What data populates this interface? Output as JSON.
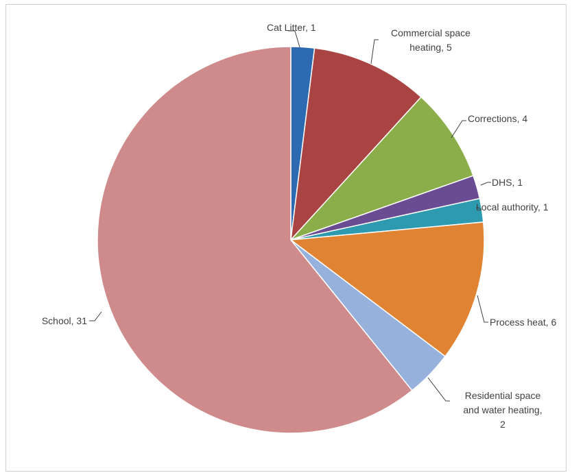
{
  "chart_data": {
    "type": "pie",
    "title": "",
    "slices": [
      {
        "label": "Cat Litter",
        "value": 1,
        "color": "#2E6AB2",
        "text_lines": [
          "Cat Litter, 1"
        ]
      },
      {
        "label": "Commercial space heating",
        "value": 5,
        "color": "#A94442",
        "text_lines": [
          "Commercial space",
          "heating, 5"
        ]
      },
      {
        "label": "Corrections",
        "value": 4,
        "color": "#8CAE4A",
        "text_lines": [
          "Corrections, 4"
        ]
      },
      {
        "label": "DHS",
        "value": 1,
        "color": "#6A4C93",
        "text_lines": [
          "DHS, 1"
        ]
      },
      {
        "label": "Local authority",
        "value": 1,
        "color": "#2E9AB0",
        "text_lines": [
          "Local authority, 1"
        ]
      },
      {
        "label": "Process heat",
        "value": 6,
        "color": "#E08434",
        "text_lines": [
          "Process heat, 6"
        ]
      },
      {
        "label": "Residential space and water heating",
        "value": 2,
        "color": "#95B1DC",
        "text_lines": [
          "Residential space",
          "and water heating,",
          "2"
        ]
      },
      {
        "label": "School",
        "value": 31,
        "color": "#CF8B8B",
        "text_lines": [
          "School, 31"
        ]
      }
    ],
    "legend": "none",
    "data_labels": "outside with leader lines"
  }
}
